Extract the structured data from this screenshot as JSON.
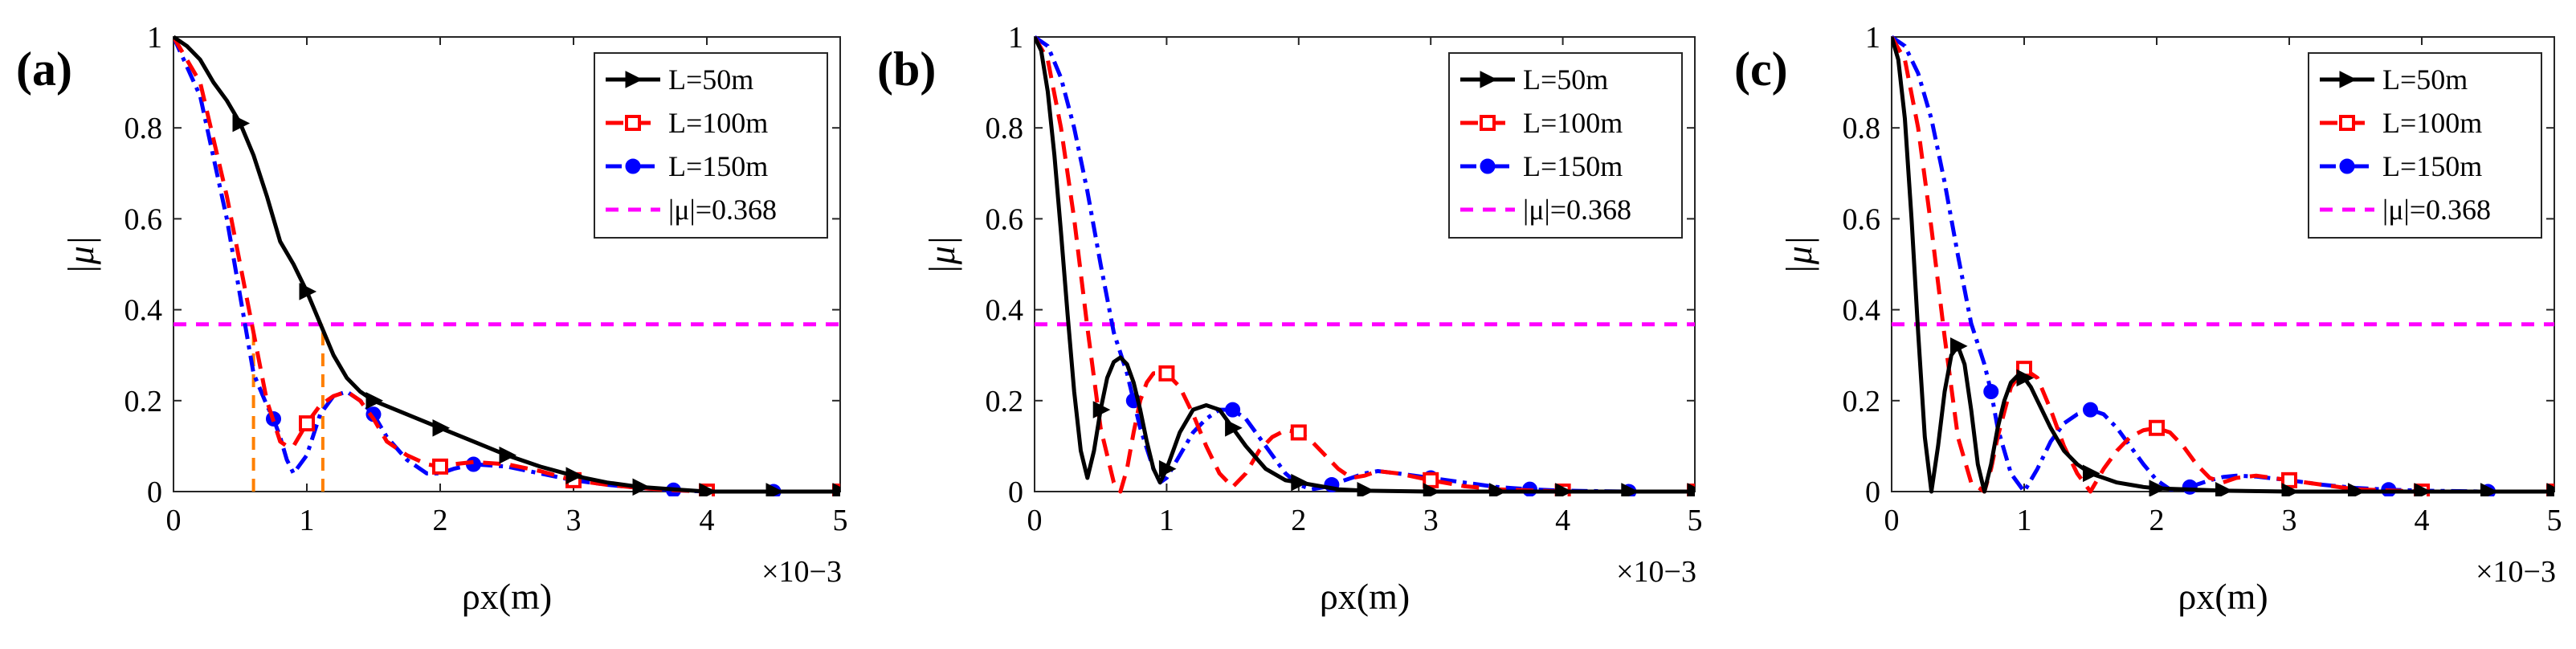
{
  "chart_data": [
    {
      "type": "line",
      "panel_label": "(a)",
      "ylabel": "|μ|",
      "xlabel": "ρx(m)",
      "x_multiplier": "×10−3",
      "xlim": [
        0,
        5
      ],
      "ylim": [
        0,
        1
      ],
      "x_ticks": [
        "0",
        "1",
        "2",
        "3",
        "4",
        "5"
      ],
      "y_ticks": [
        "0",
        "0.2",
        "0.4",
        "0.6",
        "0.8",
        "1"
      ],
      "legend_position": "top-right",
      "series": [
        {
          "name": "L=50m",
          "color": "#000000",
          "marker": "triangle-right",
          "x": [
            0,
            0.1,
            0.2,
            0.3,
            0.4,
            0.5,
            0.6,
            0.7,
            0.8,
            0.9,
            1.0,
            1.1,
            1.2,
            1.3,
            1.4,
            1.5,
            1.75,
            2.0,
            2.25,
            2.5,
            2.75,
            3.0,
            3.25,
            3.5,
            3.75,
            4.0,
            4.25,
            4.5,
            5.0
          ],
          "y": [
            1.0,
            0.98,
            0.95,
            0.9,
            0.86,
            0.81,
            0.74,
            0.65,
            0.55,
            0.5,
            0.44,
            0.37,
            0.3,
            0.25,
            0.22,
            0.2,
            0.17,
            0.14,
            0.11,
            0.08,
            0.055,
            0.035,
            0.02,
            0.01,
            0.005,
            0.0,
            0.0,
            0.0,
            0.0
          ],
          "marker_x": [
            0.5,
            1.0,
            1.5,
            2.0,
            2.5,
            3.0,
            3.5,
            4.0,
            4.5,
            5.0
          ]
        },
        {
          "name": "L=100m",
          "color": "#ff0000",
          "marker": "square",
          "x": [
            0,
            0.2,
            0.4,
            0.5,
            0.6,
            0.7,
            0.8,
            0.85,
            0.9,
            1.0,
            1.1,
            1.2,
            1.3,
            1.4,
            1.5,
            1.6,
            1.75,
            1.9,
            2.0,
            2.1,
            2.25,
            2.5,
            2.75,
            3.0,
            3.25,
            3.5,
            3.75,
            4.0,
            4.25,
            4.5,
            5.0
          ],
          "y": [
            1.0,
            0.9,
            0.65,
            0.5,
            0.35,
            0.2,
            0.11,
            0.1,
            0.1,
            0.15,
            0.19,
            0.21,
            0.22,
            0.2,
            0.16,
            0.11,
            0.08,
            0.06,
            0.055,
            0.06,
            0.065,
            0.06,
            0.045,
            0.025,
            0.015,
            0.008,
            0.003,
            0.0,
            0.0,
            0.0,
            0.0
          ],
          "marker_x": [
            1.0,
            2.0,
            3.0,
            4.0,
            5.0
          ]
        },
        {
          "name": "L=150m",
          "color": "#0000ff",
          "marker": "circle",
          "x": [
            0,
            0.2,
            0.4,
            0.5,
            0.6,
            0.7,
            0.75,
            0.8,
            0.85,
            0.9,
            1.0,
            1.1,
            1.2,
            1.3,
            1.4,
            1.5,
            1.6,
            1.75,
            1.9,
            2.0,
            2.1,
            2.25,
            2.5,
            2.75,
            3.0,
            3.25,
            3.5,
            3.75,
            4.0,
            4.25,
            4.5,
            5.0
          ],
          "y": [
            1.0,
            0.87,
            0.6,
            0.43,
            0.26,
            0.19,
            0.16,
            0.12,
            0.07,
            0.04,
            0.08,
            0.17,
            0.21,
            0.22,
            0.2,
            0.17,
            0.12,
            0.07,
            0.04,
            0.04,
            0.05,
            0.06,
            0.055,
            0.04,
            0.025,
            0.015,
            0.008,
            0.003,
            0.0,
            0.0,
            0.0,
            0.0
          ],
          "marker_x": [
            0.75,
            1.5,
            2.25,
            3.0,
            3.75,
            4.5
          ]
        },
        {
          "name": "|μ|=0.368",
          "color": "#ff00ff",
          "marker": "none",
          "dash": "dash",
          "x": [
            0,
            5
          ],
          "y": [
            0.368,
            0.368
          ],
          "marker_x": []
        }
      ],
      "annotations": [
        {
          "type": "vline",
          "x": 0.6,
          "y_top": 0.368,
          "color": "#ff8000"
        },
        {
          "type": "vline",
          "x": 1.12,
          "y_top": 0.368,
          "color": "#ff8000"
        }
      ]
    },
    {
      "type": "line",
      "panel_label": "(b)",
      "ylabel": "|μ|",
      "xlabel": "ρx(m)",
      "x_multiplier": "×10−3",
      "xlim": [
        0,
        5
      ],
      "ylim": [
        0,
        1
      ],
      "x_ticks": [
        "0",
        "1",
        "2",
        "3",
        "4",
        "5"
      ],
      "y_ticks": [
        "0",
        "0.2",
        "0.4",
        "0.6",
        "0.8",
        "1"
      ],
      "legend_position": "top-right",
      "series": [
        {
          "name": "L=50m",
          "color": "#000000",
          "marker": "triangle-right",
          "x": [
            0,
            0.05,
            0.1,
            0.15,
            0.2,
            0.25,
            0.3,
            0.35,
            0.4,
            0.45,
            0.5,
            0.55,
            0.6,
            0.65,
            0.7,
            0.75,
            0.8,
            0.85,
            0.9,
            0.95,
            1.0,
            1.05,
            1.1,
            1.2,
            1.3,
            1.4,
            1.5,
            1.6,
            1.75,
            1.9,
            2.0,
            2.1,
            2.2,
            2.3,
            2.5,
            3.0,
            4.0,
            5.0
          ],
          "y": [
            1.0,
            0.97,
            0.88,
            0.74,
            0.57,
            0.39,
            0.22,
            0.09,
            0.03,
            0.09,
            0.18,
            0.25,
            0.285,
            0.295,
            0.28,
            0.24,
            0.18,
            0.11,
            0.05,
            0.02,
            0.05,
            0.09,
            0.13,
            0.18,
            0.19,
            0.18,
            0.14,
            0.1,
            0.05,
            0.025,
            0.02,
            0.015,
            0.01,
            0.005,
            0.002,
            0.0,
            0.0,
            0.0
          ],
          "marker_x": [
            0.5,
            1.0,
            1.5,
            2.0,
            2.5,
            3.0,
            3.5,
            4.0,
            4.5,
            5.0
          ]
        },
        {
          "name": "L=100m",
          "color": "#ff0000",
          "marker": "square",
          "x": [
            0,
            0.1,
            0.2,
            0.3,
            0.4,
            0.5,
            0.6,
            0.65,
            0.7,
            0.75,
            0.8,
            0.85,
            0.9,
            1.0,
            1.1,
            1.2,
            1.3,
            1.4,
            1.5,
            1.6,
            1.7,
            1.8,
            1.9,
            2.0,
            2.1,
            2.2,
            2.3,
            2.4,
            2.5,
            2.6,
            2.75,
            3.0,
            3.25,
            3.5,
            4.0,
            5.0
          ],
          "y": [
            1.0,
            0.95,
            0.8,
            0.6,
            0.36,
            0.14,
            0.02,
            0.0,
            0.05,
            0.13,
            0.2,
            0.24,
            0.26,
            0.26,
            0.23,
            0.17,
            0.1,
            0.04,
            0.01,
            0.04,
            0.09,
            0.12,
            0.135,
            0.13,
            0.11,
            0.08,
            0.05,
            0.03,
            0.035,
            0.045,
            0.04,
            0.025,
            0.012,
            0.005,
            0.0,
            0.0
          ],
          "marker_x": [
            1.0,
            2.0,
            3.0,
            4.0,
            5.0
          ]
        },
        {
          "name": "L=150m",
          "color": "#0000ff",
          "marker": "circle",
          "x": [
            0,
            0.1,
            0.2,
            0.3,
            0.4,
            0.5,
            0.6,
            0.7,
            0.75,
            0.8,
            0.9,
            0.95,
            1.0,
            1.1,
            1.2,
            1.3,
            1.4,
            1.5,
            1.6,
            1.7,
            1.8,
            1.9,
            2.0,
            2.1,
            2.2,
            2.3,
            2.4,
            2.5,
            2.6,
            2.75,
            3.0,
            3.25,
            3.5,
            3.75,
            4.0,
            4.5,
            5.0
          ],
          "y": [
            1.0,
            0.98,
            0.91,
            0.8,
            0.66,
            0.5,
            0.35,
            0.26,
            0.2,
            0.14,
            0.05,
            0.02,
            0.03,
            0.08,
            0.13,
            0.16,
            0.18,
            0.18,
            0.16,
            0.12,
            0.08,
            0.04,
            0.015,
            0.005,
            0.01,
            0.02,
            0.03,
            0.04,
            0.045,
            0.04,
            0.03,
            0.02,
            0.01,
            0.005,
            0.002,
            0.0,
            0.0
          ],
          "marker_x": [
            0.75,
            1.5,
            2.25,
            3.0,
            3.75,
            4.5
          ]
        },
        {
          "name": "|μ|=0.368",
          "color": "#ff00ff",
          "marker": "none",
          "dash": "dash",
          "x": [
            0,
            5
          ],
          "y": [
            0.368,
            0.368
          ],
          "marker_x": []
        }
      ],
      "annotations": []
    },
    {
      "type": "line",
      "panel_label": "(c)",
      "ylabel": "|μ|",
      "xlabel": "ρx(m)",
      "x_multiplier": "×10−3",
      "xlim": [
        0,
        5
      ],
      "ylim": [
        0,
        1
      ],
      "x_ticks": [
        "0",
        "1",
        "2",
        "3",
        "4",
        "5"
      ],
      "y_ticks": [
        "0",
        "0.2",
        "0.4",
        "0.6",
        "0.8",
        "1"
      ],
      "legend_position": "top-right",
      "series": [
        {
          "name": "L=50m",
          "color": "#000000",
          "marker": "triangle-right",
          "x": [
            0,
            0.05,
            0.1,
            0.15,
            0.2,
            0.25,
            0.3,
            0.35,
            0.4,
            0.45,
            0.5,
            0.55,
            0.6,
            0.65,
            0.7,
            0.75,
            0.8,
            0.85,
            0.9,
            0.95,
            1.0,
            1.05,
            1.1,
            1.2,
            1.3,
            1.4,
            1.5,
            1.6,
            1.7,
            1.8,
            1.9,
            2.0,
            2.5,
            3.0,
            4.0,
            5.0
          ],
          "y": [
            1.0,
            0.95,
            0.82,
            0.6,
            0.35,
            0.12,
            0.0,
            0.1,
            0.22,
            0.3,
            0.32,
            0.28,
            0.18,
            0.06,
            0.0,
            0.06,
            0.14,
            0.2,
            0.24,
            0.255,
            0.25,
            0.23,
            0.2,
            0.14,
            0.09,
            0.06,
            0.04,
            0.03,
            0.02,
            0.015,
            0.01,
            0.007,
            0.002,
            0.0,
            0.0,
            0.0
          ],
          "marker_x": [
            0.5,
            1.0,
            1.5,
            2.0,
            2.5,
            3.0,
            3.5,
            4.0,
            4.5,
            5.0
          ]
        },
        {
          "name": "L=100m",
          "color": "#ff0000",
          "marker": "square",
          "x": [
            0,
            0.1,
            0.2,
            0.3,
            0.4,
            0.5,
            0.6,
            0.7,
            0.75,
            0.8,
            0.9,
            1.0,
            1.1,
            1.2,
            1.3,
            1.4,
            1.5,
            1.6,
            1.7,
            1.8,
            1.9,
            2.0,
            2.1,
            2.2,
            2.3,
            2.4,
            2.5,
            2.6,
            2.75,
            3.0,
            3.25,
            3.5,
            4.0,
            5.0
          ],
          "y": [
            1.0,
            0.95,
            0.8,
            0.58,
            0.34,
            0.12,
            0.02,
            0.0,
            0.05,
            0.12,
            0.23,
            0.27,
            0.25,
            0.18,
            0.1,
            0.04,
            0.0,
            0.05,
            0.09,
            0.12,
            0.135,
            0.14,
            0.13,
            0.1,
            0.06,
            0.03,
            0.02,
            0.03,
            0.035,
            0.025,
            0.015,
            0.005,
            0.0,
            0.0
          ],
          "marker_x": [
            1.0,
            2.0,
            3.0,
            4.0,
            5.0
          ]
        },
        {
          "name": "L=150m",
          "color": "#0000ff",
          "marker": "circle",
          "x": [
            0,
            0.1,
            0.2,
            0.3,
            0.4,
            0.5,
            0.6,
            0.7,
            0.75,
            0.8,
            0.9,
            1.0,
            1.1,
            1.2,
            1.3,
            1.4,
            1.5,
            1.6,
            1.7,
            1.8,
            1.9,
            2.0,
            2.1,
            2.2,
            2.3,
            2.4,
            2.5,
            2.6,
            2.75,
            3.0,
            3.25,
            3.5,
            3.75,
            4.0,
            4.5,
            5.0
          ],
          "y": [
            1.0,
            0.98,
            0.92,
            0.82,
            0.68,
            0.52,
            0.37,
            0.28,
            0.22,
            0.14,
            0.04,
            0.0,
            0.05,
            0.11,
            0.15,
            0.17,
            0.18,
            0.17,
            0.14,
            0.1,
            0.06,
            0.025,
            0.005,
            0.005,
            0.015,
            0.025,
            0.032,
            0.035,
            0.033,
            0.025,
            0.015,
            0.008,
            0.004,
            0.002,
            0.0,
            0.0
          ],
          "marker_x": [
            0.75,
            1.5,
            2.25,
            3.0,
            3.75,
            4.5
          ]
        },
        {
          "name": "|μ|=0.368",
          "color": "#ff00ff",
          "marker": "none",
          "dash": "dash",
          "x": [
            0,
            5
          ],
          "y": [
            0.368,
            0.368
          ],
          "marker_x": []
        }
      ],
      "annotations": []
    }
  ]
}
